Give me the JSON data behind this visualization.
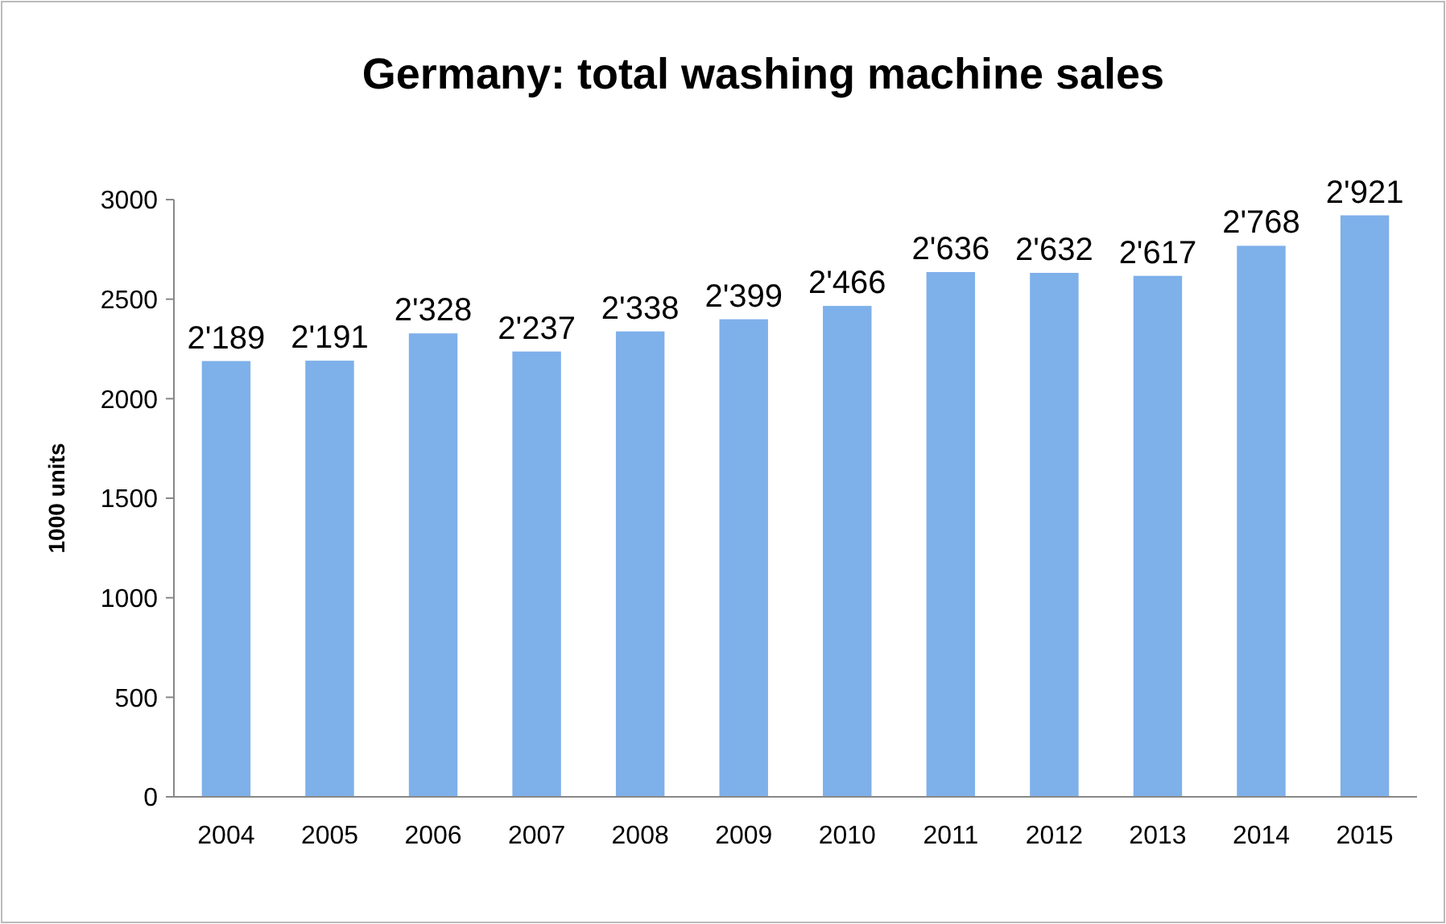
{
  "chart_data": {
    "type": "bar",
    "title": "Germany: total washing machine sales",
    "ylabel": "1000 units",
    "categories": [
      "2004",
      "2005",
      "2006",
      "2007",
      "2008",
      "2009",
      "2010",
      "2011",
      "2012",
      "2013",
      "2014",
      "2015"
    ],
    "values": [
      2189,
      2191,
      2328,
      2237,
      2338,
      2399,
      2466,
      2636,
      2632,
      2617,
      2768,
      2921
    ],
    "value_labels": [
      "2'189",
      "2'191",
      "2'328",
      "2'237",
      "2'338",
      "2'399",
      "2'466",
      "2'636",
      "2'632",
      "2'617",
      "2'768",
      "2'921"
    ],
    "color": "#7eb0ea",
    "ylim": [
      0,
      3000
    ],
    "yticks": [
      0,
      500,
      1000,
      1500,
      2000,
      2500,
      3000
    ],
    "grid": false
  }
}
